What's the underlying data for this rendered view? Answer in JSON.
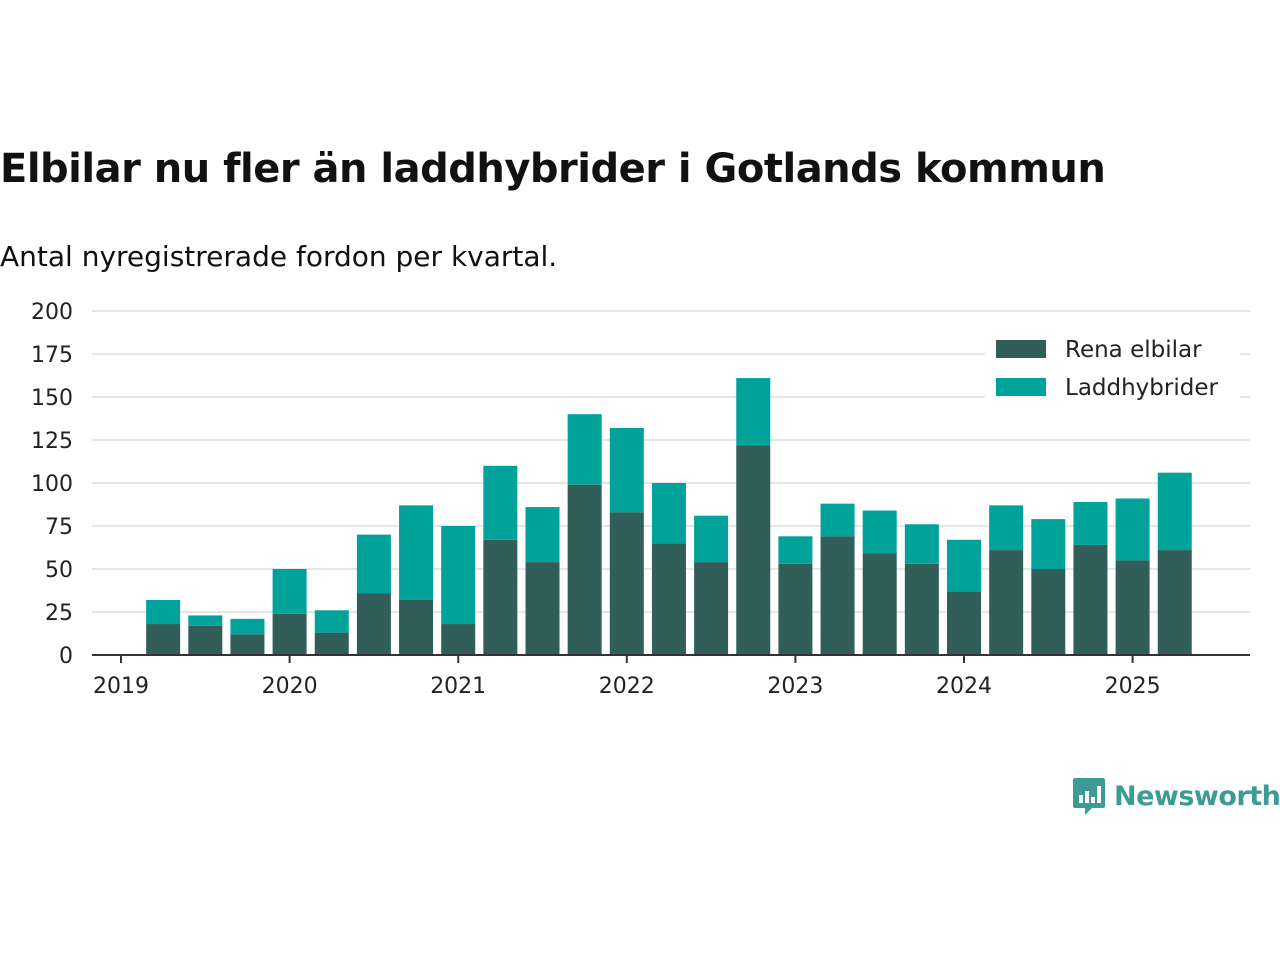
{
  "title": "Elbilar nu fler än laddhybrider i Gotlands kommun",
  "subtitle": "Antal nyregistrerade fordon per kvartal.",
  "brand": "Newsworthy",
  "colors": {
    "rena": "#325e59",
    "laddhybrider": "#00a29a",
    "grid": "#dddddd",
    "axis": "#333333",
    "brand": "#3d9b95"
  },
  "chart_data": {
    "type": "bar",
    "stacked": true,
    "categories": [
      "2019 Q2",
      "2019 Q3",
      "2019 Q4",
      "2020 Q1",
      "2020 Q2",
      "2020 Q3",
      "2020 Q4",
      "2021 Q1",
      "2021 Q2",
      "2021 Q3",
      "2021 Q4",
      "2022 Q1",
      "2022 Q2",
      "2022 Q3",
      "2022 Q4",
      "2023 Q1",
      "2023 Q2",
      "2023 Q3",
      "2023 Q4",
      "2024 Q1",
      "2024 Q2",
      "2024 Q3",
      "2024 Q4",
      "2025 Q1",
      "2025 Q2"
    ],
    "series": [
      {
        "name": "Rena elbilar",
        "values": [
          18,
          17,
          12,
          24,
          13,
          36,
          32,
          18,
          67,
          54,
          99,
          83,
          65,
          54,
          122,
          53,
          69,
          59,
          53,
          37,
          61,
          50,
          64,
          55,
          61
        ]
      },
      {
        "name": "Laddhybrider",
        "values": [
          14,
          6,
          9,
          26,
          13,
          34,
          55,
          57,
          43,
          32,
          41,
          49,
          35,
          27,
          39,
          16,
          19,
          25,
          23,
          30,
          26,
          29,
          25,
          36,
          45
        ]
      }
    ],
    "x_tick_labels": [
      "2019",
      "2020",
      "2021",
      "2022",
      "2023",
      "2024",
      "2025"
    ],
    "y_tick_labels": [
      "0",
      "25",
      "50",
      "75",
      "100",
      "125",
      "150",
      "175",
      "200"
    ],
    "ylim": [
      0,
      200
    ],
    "grid": true,
    "legend_position": "top-right"
  }
}
